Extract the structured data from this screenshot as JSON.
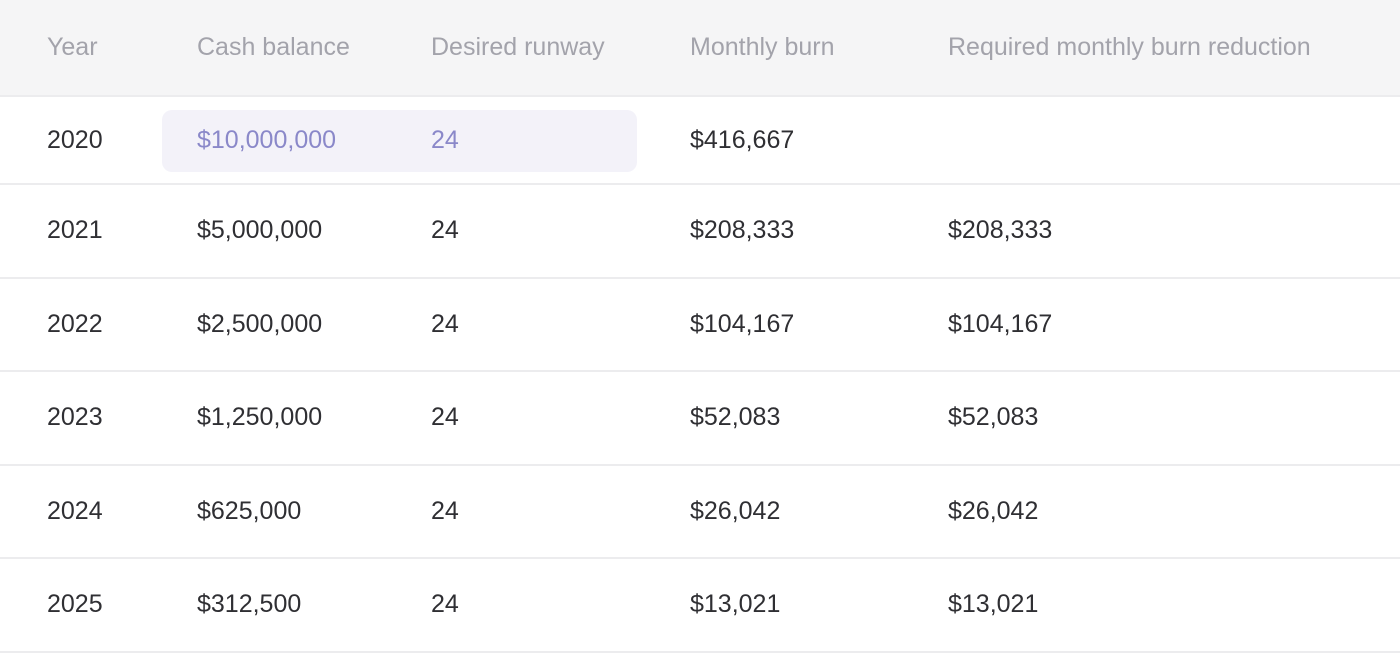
{
  "columns": {
    "year": "Year",
    "cash_balance": "Cash balance",
    "desired_runway": "Desired runway",
    "monthly_burn": "Monthly burn",
    "required_reduction": "Required monthly burn reduction"
  },
  "rows": [
    {
      "year": "2020",
      "cash_balance": "$10,000,000",
      "desired_runway": "24",
      "monthly_burn": "$416,667",
      "required_reduction": ""
    },
    {
      "year": "2021",
      "cash_balance": "$5,000,000",
      "desired_runway": "24",
      "monthly_burn": "$208,333",
      "required_reduction": "$208,333"
    },
    {
      "year": "2022",
      "cash_balance": "$2,500,000",
      "desired_runway": "24",
      "monthly_burn": "$104,167",
      "required_reduction": "$104,167"
    },
    {
      "year": "2023",
      "cash_balance": "$1,250,000",
      "desired_runway": "24",
      "monthly_burn": "$52,083",
      "required_reduction": "$52,083"
    },
    {
      "year": "2024",
      "cash_balance": "$625,000",
      "desired_runway": "24",
      "monthly_burn": "$26,042",
      "required_reduction": "$26,042"
    },
    {
      "year": "2025",
      "cash_balance": "$312,500",
      "desired_runway": "24",
      "monthly_burn": "$13,021",
      "required_reduction": "$13,021"
    }
  ],
  "colors": {
    "header_bg": "#f5f5f6",
    "header_text": "#a3a3ab",
    "input_highlight_bg": "#f3f2f9",
    "input_text": "#8a88c9",
    "body_text": "#2f2f33",
    "row_divider": "#ececee"
  }
}
